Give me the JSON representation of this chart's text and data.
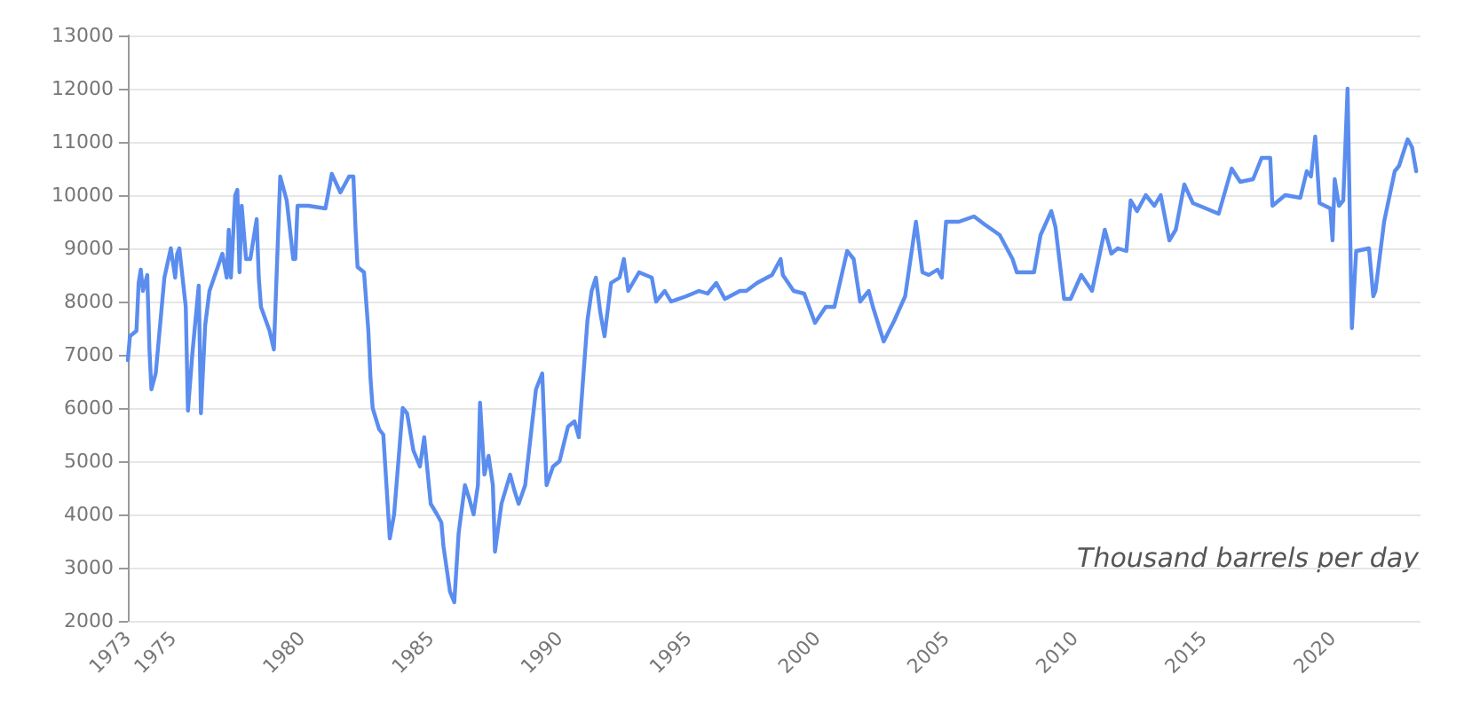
{
  "chart_data": {
    "type": "line",
    "annotations": [
      "Thousand barrels per day"
    ],
    "x": [
      "1973-04",
      "1973-05",
      "1973-08",
      "1973-09",
      "1973-10",
      "1973-11",
      "1974-01",
      "1974-02",
      "1974-03",
      "1974-05",
      "1974-09",
      "1974-12",
      "1975-02",
      "1975-03",
      "1975-04",
      "1975-07",
      "1975-08",
      "1975-10",
      "1976-01",
      "1976-02",
      "1976-04",
      "1976-06",
      "1976-12",
      "1977-02",
      "1977-03",
      "1977-04",
      "1977-06",
      "1977-07",
      "1977-08",
      "1977-09",
      "1977-11",
      "1978-01",
      "1978-04",
      "1978-05",
      "1978-06",
      "1978-10",
      "1978-12",
      "1979-03",
      "1979-06",
      "1979-09",
      "1979-10",
      "1979-11",
      "1980-04",
      "1980-12",
      "1981-03",
      "1981-07",
      "1981-11",
      "1982-01",
      "1982-02",
      "1982-03",
      "1982-06",
      "1982-08",
      "1982-09",
      "1982-10",
      "1983-01",
      "1983-03",
      "1983-06",
      "1983-08",
      "1983-12",
      "1984-02",
      "1984-05",
      "1984-08",
      "1984-10",
      "1985-01",
      "1985-04",
      "1985-06",
      "1985-07",
      "1985-10",
      "1985-12",
      "1986-02",
      "1986-05",
      "1986-07",
      "1986-09",
      "1986-11",
      "1986-12",
      "1987-02",
      "1987-04",
      "1987-06",
      "1987-07",
      "1987-10",
      "1988-02",
      "1988-04",
      "1988-06",
      "1988-09",
      "1989-02",
      "1989-05",
      "1989-07",
      "1989-10",
      "1990-01",
      "1990-05",
      "1990-08",
      "1990-10",
      "1991-02",
      "1991-04",
      "1991-06",
      "1991-08",
      "1991-10",
      "1992-01",
      "1992-05",
      "1992-07",
      "1992-09",
      "1993-02",
      "1993-08",
      "1993-10",
      "1994-02",
      "1994-05",
      "1994-12",
      "1995-06",
      "1995-10",
      "1996-02",
      "1996-06",
      "1997-01",
      "1997-04",
      "1997-09",
      "1998-04",
      "1998-08",
      "1998-09",
      "1999-02",
      "1999-07",
      "1999-12",
      "2000-05",
      "2000-09",
      "2001-03",
      "2001-06",
      "2001-09",
      "2002-01",
      "2002-03",
      "2002-08",
      "2003-01",
      "2003-06",
      "2003-11",
      "2004-02",
      "2004-05",
      "2004-09",
      "2004-11",
      "2005-01",
      "2005-07",
      "2006-02",
      "2006-07",
      "2007-02",
      "2007-08",
      "2007-10",
      "2008-06",
      "2008-09",
      "2009-02",
      "2009-04",
      "2009-08",
      "2009-11",
      "2010-04",
      "2010-09",
      "2011-03",
      "2011-06",
      "2011-09",
      "2012-01",
      "2012-03",
      "2012-06",
      "2012-10",
      "2013-02",
      "2013-05",
      "2013-09",
      "2013-12",
      "2014-04",
      "2014-08",
      "2015-02",
      "2015-08",
      "2016-02",
      "2016-06",
      "2016-12",
      "2017-04",
      "2017-08",
      "2017-09",
      "2018-03",
      "2018-10",
      "2019-01",
      "2019-03",
      "2019-05",
      "2019-07",
      "2019-12",
      "2020-01",
      "2020-02",
      "2020-04",
      "2020-06",
      "2020-08",
      "2020-10",
      "2020-12",
      "2021-06",
      "2021-08",
      "2021-09",
      "2022-01",
      "2022-06",
      "2022-08",
      "2022-12",
      "2023-02",
      "2023-04"
    ],
    "series": [
      {
        "color": "#5b8def",
        "values": [
          6900,
          7350,
          7450,
          8350,
          8600,
          8200,
          8500,
          7100,
          6350,
          6650,
          8450,
          9000,
          8450,
          8900,
          9000,
          7900,
          5950,
          7000,
          8300,
          5900,
          7550,
          8200,
          8900,
          8450,
          9350,
          8450,
          10000,
          10100,
          8550,
          9800,
          8800,
          8800,
          9550,
          8450,
          7900,
          7450,
          7100,
          10350,
          9900,
          8800,
          8800,
          9800,
          9800,
          9750,
          10400,
          10050,
          10350,
          10350,
          9350,
          8650,
          8550,
          7450,
          6550,
          6000,
          5600,
          5500,
          3550,
          4000,
          6000,
          5900,
          5200,
          4900,
          5450,
          4200,
          4000,
          3850,
          3400,
          2550,
          2350,
          3650,
          4550,
          4300,
          4000,
          4550,
          6100,
          4750,
          5100,
          4550,
          3300,
          4200,
          4750,
          4450,
          4200,
          4550,
          6350,
          6650,
          4550,
          4900,
          5000,
          5650,
          5750,
          5450,
          7650,
          8200,
          8450,
          7800,
          7350,
          8350,
          8450,
          8800,
          8200,
          8550,
          8450,
          8000,
          8200,
          8000,
          8100,
          8200,
          8150,
          8350,
          8050,
          8200,
          8200,
          8350,
          8500,
          8800,
          8500,
          8200,
          8150,
          7600,
          7900,
          7900,
          8950,
          8800,
          8000,
          8200,
          7900,
          7250,
          7650,
          8100,
          9500,
          8550,
          8500,
          8600,
          8450,
          9500,
          9500,
          9600,
          9450,
          9250,
          8800,
          8550,
          8550,
          9250,
          9700,
          9400,
          8050,
          8050,
          8500,
          8200,
          9350,
          8900,
          9000,
          8950,
          9900,
          9700,
          10000,
          9800,
          10000,
          9150,
          9350,
          10200,
          9850,
          9750,
          9650,
          10500,
          10250,
          10300,
          10700,
          10700,
          9800,
          10000,
          9950,
          10450,
          10350,
          11100,
          9850,
          9750,
          9150,
          10300,
          9800,
          9900,
          12000,
          7500,
          8950,
          9000,
          8100,
          8200,
          9500,
          10450,
          10550,
          11050,
          10900,
          10450
        ]
      }
    ],
    "xlim": [
      "1973-04",
      "2023-06"
    ],
    "xticks": [
      {
        "value": "1973-04",
        "label": "1973"
      },
      "1975",
      "1980",
      "1985",
      "1990",
      "1995",
      "2000",
      "2005",
      "2010",
      "2015",
      "2020"
    ],
    "ylim": [
      2000,
      13000
    ],
    "yticks": [
      2000,
      3000,
      4000,
      5000,
      6000,
      7000,
      8000,
      9000,
      10000,
      11000,
      12000,
      13000
    ],
    "grid": "y",
    "marker": "none",
    "line_style": "solid"
  }
}
